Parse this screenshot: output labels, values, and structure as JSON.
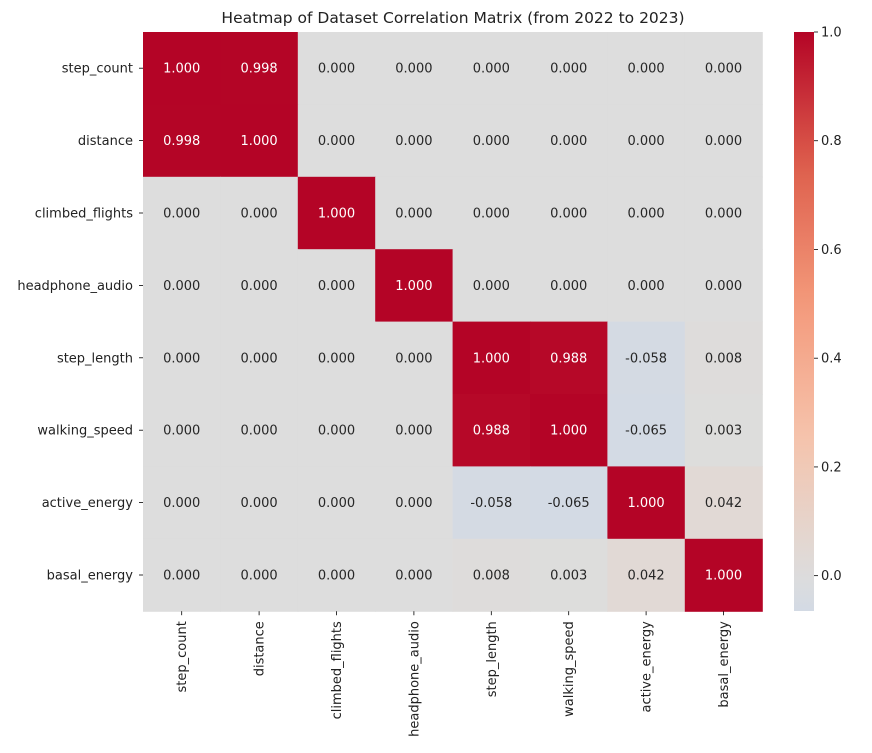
{
  "chart_data": {
    "type": "heatmap",
    "title": "Heatmap of Dataset Correlation Matrix (from 2022 to 2023)",
    "xlabel": "",
    "ylabel": "",
    "rows": [
      "step_count",
      "distance",
      "climbed_flights",
      "headphone_audio",
      "step_length",
      "walking_speed",
      "active_energy",
      "basal_energy"
    ],
    "columns": [
      "step_count",
      "distance",
      "climbed_flights",
      "headphone_audio",
      "step_length",
      "walking_speed",
      "active_energy",
      "basal_energy"
    ],
    "values": [
      [
        1.0,
        0.998,
        0.0,
        0.0,
        0.0,
        0.0,
        0.0,
        0.0
      ],
      [
        0.998,
        1.0,
        0.0,
        0.0,
        0.0,
        0.0,
        0.0,
        0.0
      ],
      [
        0.0,
        0.0,
        1.0,
        0.0,
        0.0,
        0.0,
        0.0,
        0.0
      ],
      [
        0.0,
        0.0,
        0.0,
        1.0,
        0.0,
        0.0,
        0.0,
        0.0
      ],
      [
        0.0,
        0.0,
        0.0,
        0.0,
        1.0,
        0.988,
        -0.058,
        0.008
      ],
      [
        0.0,
        0.0,
        0.0,
        0.0,
        0.988,
        1.0,
        -0.065,
        0.003
      ],
      [
        0.0,
        0.0,
        0.0,
        0.0,
        -0.058,
        -0.065,
        1.0,
        0.042
      ],
      [
        0.0,
        0.0,
        0.0,
        0.0,
        0.008,
        0.003,
        0.042,
        1.0
      ]
    ],
    "value_format": "3 decimals",
    "colormap": "coolwarm",
    "colormap_center": 0,
    "color_range": [
      -0.065,
      1.0
    ],
    "colorbar": {
      "ticks": [
        0.0,
        0.2,
        0.4,
        0.6,
        0.8,
        1.0
      ],
      "tick_labels": [
        "0.0",
        "0.2",
        "0.4",
        "0.6",
        "0.8",
        "1.0"
      ],
      "placement": "right"
    },
    "grid": false,
    "legend": "colorbar"
  }
}
